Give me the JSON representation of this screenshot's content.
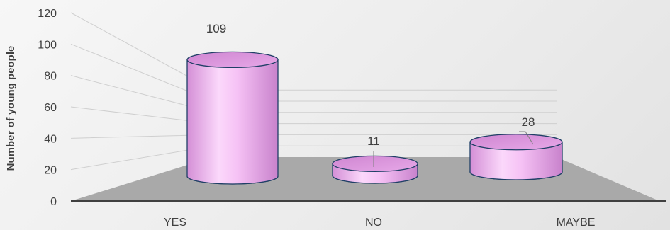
{
  "chart_data": {
    "type": "bar",
    "style": "3d-cylinder",
    "categories": [
      "YES",
      "NO",
      "MAYBE"
    ],
    "values": [
      109,
      11,
      28
    ],
    "data_labels": [
      "109",
      "11",
      "28"
    ],
    "title": "",
    "xlabel": "",
    "ylabel": "Number of young people",
    "ylim": [
      0,
      120
    ],
    "yticks": [
      0,
      20,
      40,
      60,
      80,
      100,
      120
    ],
    "grid": true,
    "legend": "none",
    "colors": {
      "bar_fill": "#f2b3f0",
      "bar_edge": "#1f3f66",
      "floor": "#a9a9a9",
      "grid": "#cfcfcf",
      "axis": "#404040"
    }
  }
}
